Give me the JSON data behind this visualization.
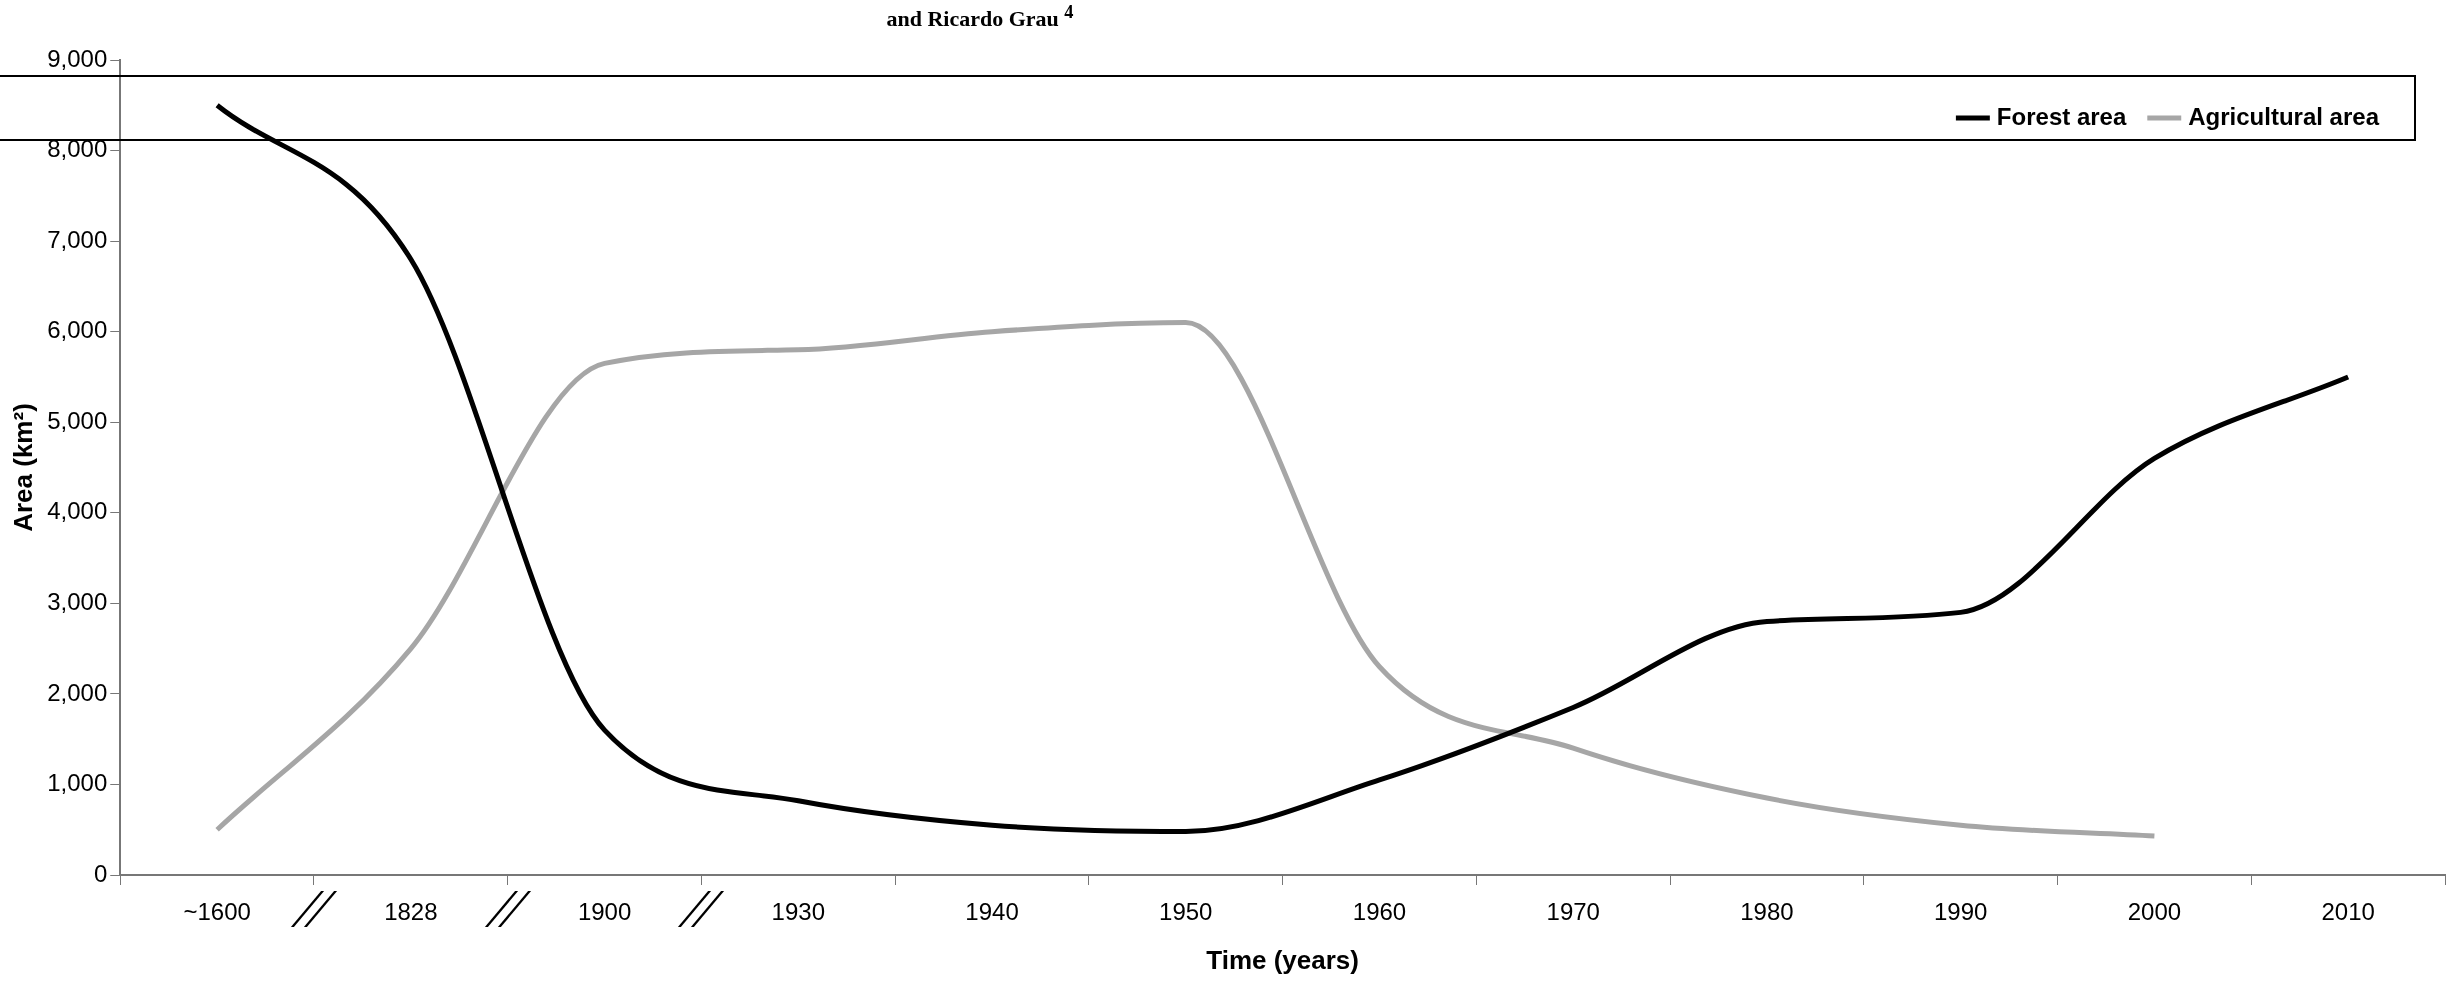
{
  "chart_data": {
    "type": "line",
    "xlabel": "Time (years)",
    "ylabel": "Area (km²)",
    "annotations": [
      "and Ricardo Grau $^{4}$"
    ],
    "categories": [
      "~1600",
      "1828",
      "1900",
      "1930",
      "1940",
      "1950",
      "1960",
      "1970",
      "1980",
      "1990",
      "2000",
      "2010"
    ],
    "ylim": [
      0,
      9000
    ],
    "yticks": [
      {
        "value": 0,
        "label": "0"
      },
      {
        "value": 1000,
        "label": "1,000"
      },
      {
        "value": 2000,
        "label": "2,000"
      },
      {
        "value": 3000,
        "label": "3,000"
      },
      {
        "value": 4000,
        "label": "4,000"
      },
      {
        "value": 5000,
        "label": "5,000"
      },
      {
        "value": 6000,
        "label": "6,000"
      },
      {
        "value": 7000,
        "label": "7,000"
      },
      {
        "value": 8000,
        "label": "8,000"
      },
      {
        "value": 9000,
        "label": "9,000"
      }
    ],
    "grid": false,
    "legend": "top right",
    "marker": "none",
    "line_style": "solid",
    "series": [
      {
        "name": "Forest area",
        "color": "#000000",
        "values": [
          8500,
          6800,
          1600,
          820,
          550,
          480,
          1050,
          1850,
          2800,
          2900,
          4600,
          5500
        ]
      },
      {
        "name": "Agricultural area",
        "color": "#a6a6a6",
        "values": [
          500,
          2500,
          5650,
          5800,
          6000,
          6100,
          2300,
          1400,
          850,
          550,
          430,
          null
        ]
      }
    ]
  }
}
